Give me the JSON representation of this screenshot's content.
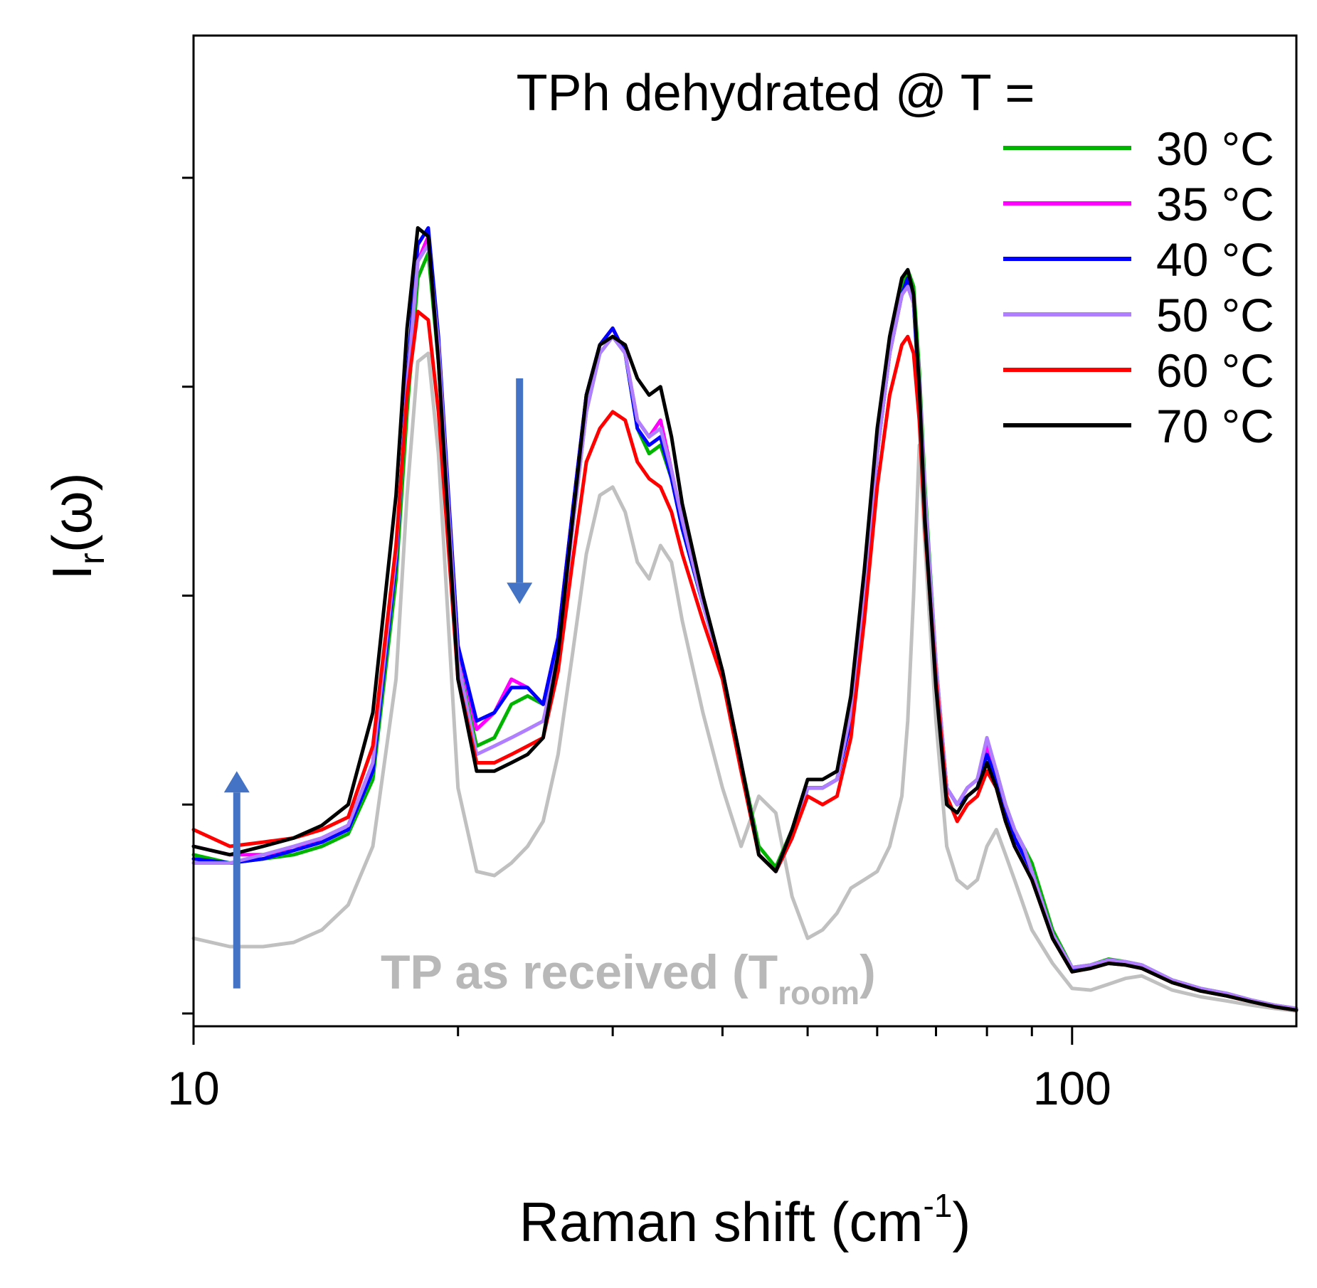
{
  "chart_data": {
    "type": "line",
    "title": "TPh dehydrated @ T =",
    "xlabel": "Raman shift (cm",
    "xlabel_sup": "-1",
    "xlabel_close": ")",
    "ylabel": "I",
    "ylabel_sub": "r",
    "ylabel_tail": "(ω)",
    "xscale": "log",
    "xlim": [
      10,
      180
    ],
    "ylim": [
      0,
      1
    ],
    "x_ticks": [
      10,
      100
    ],
    "x_tick_labels": [
      "10",
      "100"
    ],
    "grid": false,
    "legend_position": "top-right",
    "annotation": {
      "text": "TP as received (T",
      "sub": "room",
      "close": ")",
      "color": "#b8b8b8"
    },
    "arrows": [
      {
        "x": 11.2,
        "y_from": 0.03,
        "y_to": 0.29,
        "direction": "up",
        "color": "#4472c4"
      },
      {
        "x": 23.5,
        "y_from": 0.76,
        "y_to": 0.49,
        "direction": "down",
        "color": "#4472c4"
      }
    ],
    "x": [
      10,
      11,
      12,
      13,
      14,
      15,
      16,
      17,
      17.5,
      18,
      18.5,
      19,
      20,
      21,
      22,
      23,
      24,
      25,
      26,
      27,
      28,
      29,
      30,
      31,
      32,
      33,
      34,
      35,
      36,
      38,
      40,
      42,
      44,
      46,
      48,
      50,
      52,
      54,
      56,
      58,
      60,
      62,
      64,
      65,
      66,
      67,
      68,
      70,
      72,
      74,
      76,
      78,
      80,
      82,
      84,
      86,
      88,
      90,
      95,
      100,
      105,
      110,
      115,
      120,
      130,
      140,
      150,
      160,
      170,
      180
    ],
    "series": [
      {
        "name": "30 °C",
        "color": "#00b400",
        "values": [
          0.19,
          0.18,
          0.185,
          0.19,
          0.2,
          0.215,
          0.28,
          0.52,
          0.72,
          0.88,
          0.91,
          0.78,
          0.42,
          0.32,
          0.33,
          0.37,
          0.38,
          0.37,
          0.44,
          0.58,
          0.72,
          0.79,
          0.81,
          0.79,
          0.7,
          0.67,
          0.68,
          0.64,
          0.58,
          0.49,
          0.41,
          0.3,
          0.2,
          0.175,
          0.22,
          0.27,
          0.27,
          0.28,
          0.36,
          0.5,
          0.68,
          0.8,
          0.87,
          0.89,
          0.87,
          0.77,
          0.63,
          0.42,
          0.27,
          0.25,
          0.27,
          0.28,
          0.32,
          0.29,
          0.25,
          0.22,
          0.2,
          0.18,
          0.1,
          0.055,
          0.058,
          0.065,
          0.062,
          0.058,
          0.04,
          0.03,
          0.024,
          0.016,
          0.01,
          0.006
        ]
      },
      {
        "name": "35 °C",
        "color": "#ff00ff",
        "values": [
          0.2,
          0.19,
          0.19,
          0.195,
          0.21,
          0.225,
          0.3,
          0.55,
          0.75,
          0.9,
          0.93,
          0.8,
          0.44,
          0.34,
          0.36,
          0.4,
          0.39,
          0.37,
          0.45,
          0.6,
          0.74,
          0.8,
          0.82,
          0.79,
          0.71,
          0.69,
          0.71,
          0.65,
          0.59,
          0.49,
          0.41,
          0.3,
          0.19,
          0.17,
          0.22,
          0.27,
          0.27,
          0.28,
          0.36,
          0.5,
          0.67,
          0.79,
          0.86,
          0.87,
          0.85,
          0.75,
          0.61,
          0.41,
          0.27,
          0.25,
          0.27,
          0.28,
          0.32,
          0.29,
          0.24,
          0.21,
          0.19,
          0.17,
          0.095,
          0.052,
          0.056,
          0.062,
          0.06,
          0.056,
          0.038,
          0.028,
          0.022,
          0.015,
          0.009,
          0.005
        ]
      },
      {
        "name": "40 °C",
        "color": "#0000ff",
        "values": [
          0.185,
          0.18,
          0.185,
          0.195,
          0.205,
          0.22,
          0.29,
          0.54,
          0.76,
          0.92,
          0.94,
          0.81,
          0.44,
          0.35,
          0.36,
          0.39,
          0.39,
          0.37,
          0.45,
          0.6,
          0.74,
          0.8,
          0.82,
          0.79,
          0.7,
          0.68,
          0.69,
          0.64,
          0.58,
          0.49,
          0.41,
          0.3,
          0.19,
          0.17,
          0.21,
          0.27,
          0.27,
          0.28,
          0.35,
          0.49,
          0.67,
          0.79,
          0.86,
          0.88,
          0.85,
          0.74,
          0.6,
          0.41,
          0.27,
          0.25,
          0.26,
          0.27,
          0.31,
          0.28,
          0.24,
          0.21,
          0.19,
          0.17,
          0.095,
          0.052,
          0.055,
          0.062,
          0.06,
          0.056,
          0.038,
          0.028,
          0.022,
          0.015,
          0.009,
          0.005
        ]
      },
      {
        "name": "50 °C",
        "color": "#b07fff",
        "values": [
          0.18,
          0.18,
          0.19,
          0.2,
          0.21,
          0.225,
          0.3,
          0.55,
          0.75,
          0.9,
          0.92,
          0.8,
          0.42,
          0.31,
          0.32,
          0.33,
          0.34,
          0.35,
          0.43,
          0.58,
          0.72,
          0.79,
          0.81,
          0.79,
          0.71,
          0.69,
          0.7,
          0.65,
          0.59,
          0.49,
          0.41,
          0.3,
          0.19,
          0.17,
          0.22,
          0.27,
          0.27,
          0.28,
          0.36,
          0.5,
          0.67,
          0.79,
          0.86,
          0.87,
          0.85,
          0.76,
          0.62,
          0.42,
          0.27,
          0.25,
          0.27,
          0.28,
          0.33,
          0.29,
          0.25,
          0.22,
          0.2,
          0.17,
          0.095,
          0.055,
          0.058,
          0.064,
          0.062,
          0.058,
          0.04,
          0.03,
          0.024,
          0.016,
          0.01,
          0.006
        ]
      },
      {
        "name": "60 °C",
        "color": "#ff0000",
        "values": [
          0.22,
          0.2,
          0.205,
          0.21,
          0.22,
          0.235,
          0.32,
          0.56,
          0.74,
          0.84,
          0.83,
          0.72,
          0.4,
          0.3,
          0.3,
          0.31,
          0.32,
          0.33,
          0.41,
          0.54,
          0.66,
          0.7,
          0.72,
          0.71,
          0.66,
          0.64,
          0.63,
          0.6,
          0.55,
          0.47,
          0.4,
          0.29,
          0.19,
          0.17,
          0.21,
          0.26,
          0.25,
          0.26,
          0.33,
          0.47,
          0.63,
          0.74,
          0.8,
          0.81,
          0.79,
          0.71,
          0.58,
          0.4,
          0.26,
          0.23,
          0.25,
          0.26,
          0.29,
          0.27,
          0.23,
          0.2,
          0.18,
          0.16,
          0.09,
          0.05,
          0.054,
          0.06,
          0.058,
          0.054,
          0.037,
          0.027,
          0.021,
          0.014,
          0.008,
          0.004
        ]
      },
      {
        "name": "70 °C",
        "color": "#000000",
        "values": [
          0.2,
          0.19,
          0.2,
          0.21,
          0.225,
          0.25,
          0.36,
          0.62,
          0.82,
          0.94,
          0.93,
          0.78,
          0.4,
          0.29,
          0.29,
          0.3,
          0.31,
          0.33,
          0.43,
          0.59,
          0.74,
          0.8,
          0.81,
          0.8,
          0.76,
          0.74,
          0.75,
          0.69,
          0.61,
          0.5,
          0.41,
          0.3,
          0.19,
          0.17,
          0.22,
          0.28,
          0.28,
          0.29,
          0.38,
          0.53,
          0.7,
          0.81,
          0.88,
          0.89,
          0.86,
          0.75,
          0.59,
          0.39,
          0.25,
          0.24,
          0.26,
          0.27,
          0.3,
          0.27,
          0.23,
          0.2,
          0.18,
          0.16,
          0.09,
          0.05,
          0.054,
          0.06,
          0.058,
          0.054,
          0.037,
          0.027,
          0.021,
          0.014,
          0.008,
          0.004
        ]
      },
      {
        "name": "TP as received (Troom)",
        "color": "#c0c0c0",
        "values": [
          0.09,
          0.08,
          0.08,
          0.085,
          0.1,
          0.13,
          0.2,
          0.4,
          0.62,
          0.78,
          0.79,
          0.67,
          0.27,
          0.17,
          0.165,
          0.18,
          0.2,
          0.23,
          0.31,
          0.43,
          0.55,
          0.62,
          0.63,
          0.6,
          0.54,
          0.52,
          0.56,
          0.54,
          0.47,
          0.36,
          0.27,
          0.2,
          0.26,
          0.24,
          0.14,
          0.09,
          0.1,
          0.12,
          0.15,
          0.16,
          0.17,
          0.2,
          0.26,
          0.35,
          0.5,
          0.68,
          0.56,
          0.35,
          0.2,
          0.16,
          0.15,
          0.16,
          0.2,
          0.22,
          0.19,
          0.16,
          0.13,
          0.1,
          0.06,
          0.03,
          0.028,
          0.035,
          0.042,
          0.045,
          0.028,
          0.02,
          0.015,
          0.01,
          0.006,
          0.003
        ]
      }
    ]
  }
}
